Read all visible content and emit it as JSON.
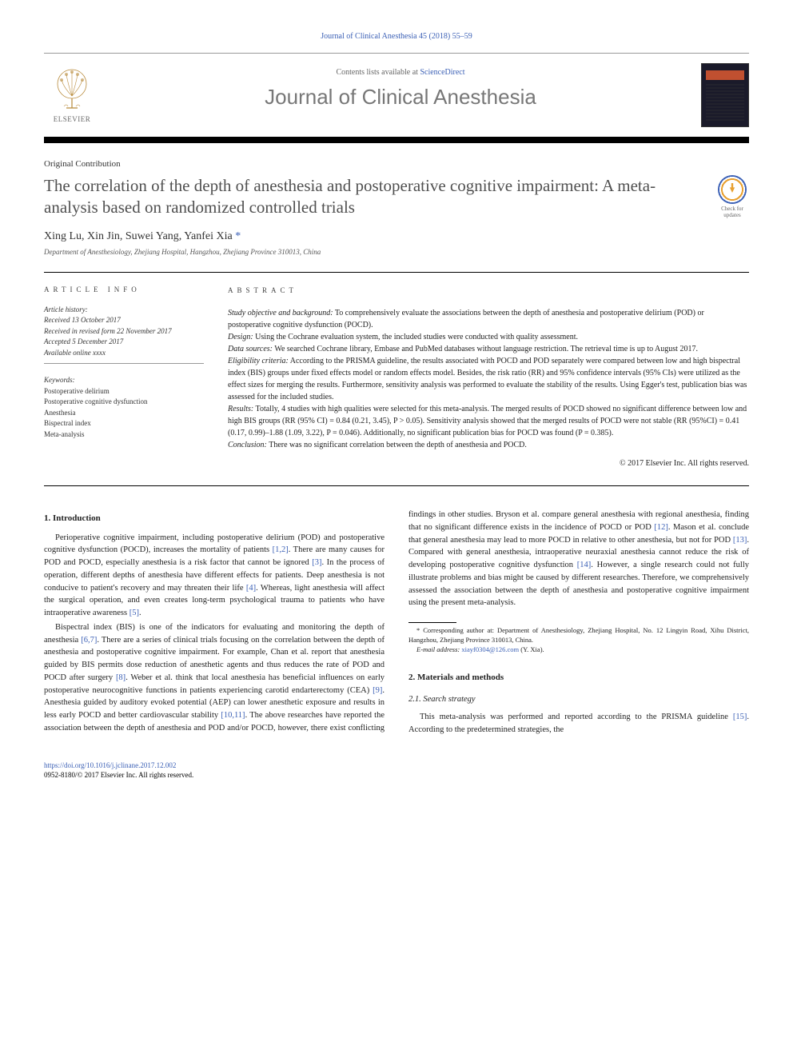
{
  "header": {
    "citation": "Journal of Clinical Anesthesia 45 (2018) 55–59",
    "contents_prefix": "Contents lists available at ",
    "contents_link": "ScienceDirect",
    "journal_name": "Journal of Clinical Anesthesia",
    "publisher": "ELSEVIER"
  },
  "article": {
    "type": "Original Contribution",
    "title": "The correlation of the depth of anesthesia and postoperative cognitive impairment: A meta-analysis based on randomized controlled trials",
    "authors": "Xing Lu, Xin Jin, Suwei Yang, Yanfei Xia ",
    "corr_mark": "*",
    "affiliation": "Department of Anesthesiology, Zhejiang Hospital, Hangzhou, Zhejiang Province 310013, China",
    "updates_badge": "Check for updates"
  },
  "info": {
    "heading": "ARTICLE INFO",
    "history_label": "Article history:",
    "history": [
      "Received 13 October 2017",
      "Received in revised form 22 November 2017",
      "Accepted 5 December 2017",
      "Available online xxxx"
    ],
    "keywords_label": "Keywords:",
    "keywords": [
      "Postoperative delirium",
      "Postoperative cognitive dysfunction",
      "Anesthesia",
      "Bispectral index",
      "Meta-analysis"
    ]
  },
  "abstract": {
    "heading": "ABSTRACT",
    "items": [
      {
        "label": "Study objective and background:",
        "text": " To comprehensively evaluate the associations between the depth of anesthesia and postoperative delirium (POD) or postoperative cognitive dysfunction (POCD)."
      },
      {
        "label": "Design:",
        "text": " Using the Cochrane evaluation system, the included studies were conducted with quality assessment."
      },
      {
        "label": "Data sources:",
        "text": " We searched Cochrane library, Embase and PubMed databases without language restriction. The retrieval time is up to August 2017."
      },
      {
        "label": "Eligibility criteria:",
        "text": " According to the PRISMA guideline, the results associated with POCD and POD separately were compared between low and high bispectral index (BIS) groups under fixed effects model or random effects model. Besides, the risk ratio (RR) and 95% confidence intervals (95% CIs) were utilized as the effect sizes for merging the results. Furthermore, sensitivity analysis was performed to evaluate the stability of the results. Using Egger's test, publication bias was assessed for the included studies."
      },
      {
        "label": "Results:",
        "text": " Totally, 4 studies with high qualities were selected for this meta-analysis. The merged results of POCD showed no significant difference between low and high BIS groups (RR (95% CI) = 0.84 (0.21, 3.45), P > 0.05). Sensitivity analysis showed that the merged results of POCD were not stable (RR (95%CI) = 0.41 (0.17, 0.99)–1.88 (1.09, 3.22), P = 0.046). Additionally, no significant publication bias for POCD was found (P = 0.385)."
      },
      {
        "label": "Conclusion:",
        "text": " There was no significant correlation between the depth of anesthesia and POCD."
      }
    ],
    "copyright": "© 2017 Elsevier Inc. All rights reserved."
  },
  "body": {
    "intro_heading": "1. Introduction",
    "intro_p1_a": "Perioperative cognitive impairment, including postoperative delirium (POD) and postoperative cognitive dysfunction (POCD), increases the mortality of patients ",
    "ref_1_2": "[1,2]",
    "intro_p1_b": ". There are many causes for POD and POCD, especially anesthesia is a risk factor that cannot be ignored ",
    "ref_3": "[3]",
    "intro_p1_c": ". In the process of operation, different depths of anesthesia have different effects for patients. Deep anesthesia is not conducive to patient's recovery and may threaten their life ",
    "ref_4": "[4]",
    "intro_p1_d": ". Whereas, light anesthesia will affect the surgical operation, and even creates long-term psychological trauma to patients who have intraoperative awareness ",
    "ref_5": "[5]",
    "intro_p1_e": ".",
    "intro_p2_a": "Bispectral index (BIS) is one of the indicators for evaluating and monitoring the depth of anesthesia ",
    "ref_6_7": "[6,7]",
    "intro_p2_b": ". There are a series of clinical trials focusing on the correlation between the depth of anesthesia and postoperative cognitive impairment. For example, Chan et al. report that anesthesia guided by BIS permits dose reduction of anesthetic agents and thus reduces the rate of POD and POCD after surgery ",
    "ref_8": "[8]",
    "intro_p2_c": ". Weber et al. think that local anesthesia has beneficial influences on early postoperative neurocognitive functions in patients experiencing carotid endarterectomy (CEA) ",
    "ref_9": "[9]",
    "intro_p2_d": ". Anesthesia guided by auditory evoked potential (AEP) can lower anesthetic exposure and results in less early POCD and better cardiovascular stability ",
    "ref_10_11": "[10,11]",
    "intro_p2_e": ". The above researches have reported the association between the depth of anesthesia and POD and/or POCD, however, there exist conflicting findings in other studies. Bryson et al. compare general anesthesia with regional anesthesia, finding that no significant difference exists in the incidence of POCD or POD ",
    "ref_12": "[12]",
    "intro_p2_f": ". Mason et al. conclude that general anesthesia may lead to more POCD in relative to other anesthesia, but not for POD ",
    "ref_13": "[13]",
    "intro_p2_g": ". Compared with general anesthesia, intraoperative neuraxial anesthesia cannot reduce the risk of developing postoperative cognitive dysfunction ",
    "ref_14": "[14]",
    "intro_p2_h": ". However, a single research could not fully illustrate problems and bias might be caused by different researches. Therefore, we comprehensively assessed the association between the depth of anesthesia and postoperative cognitive impairment using the present meta-analysis.",
    "methods_heading": "2. Materials and methods",
    "search_heading": "2.1. Search strategy",
    "search_p_a": "This meta-analysis was performed and reported according to the PRISMA guideline ",
    "ref_15": "[15]",
    "search_p_b": ". According to the predetermined strategies, the"
  },
  "footnote": {
    "corr": "* Corresponding author at: Department of Anesthesiology, Zhejiang Hospital, No. 12 Lingyin Road, Xihu District, Hangzhou, Zhejiang Province 310013, China.",
    "email_label": "E-mail address: ",
    "email": "xiayf0304@126.com",
    "email_suffix": " (Y. Xia)."
  },
  "footer": {
    "doi": "https://doi.org/10.1016/j.jclinane.2017.12.002",
    "issn_copy": "0952-8180/© 2017 Elsevier Inc. All rights reserved."
  },
  "colors": {
    "link": "#3a5fb5",
    "text": "#222222",
    "heading_gray": "#505050",
    "journal_gray": "#777777"
  }
}
